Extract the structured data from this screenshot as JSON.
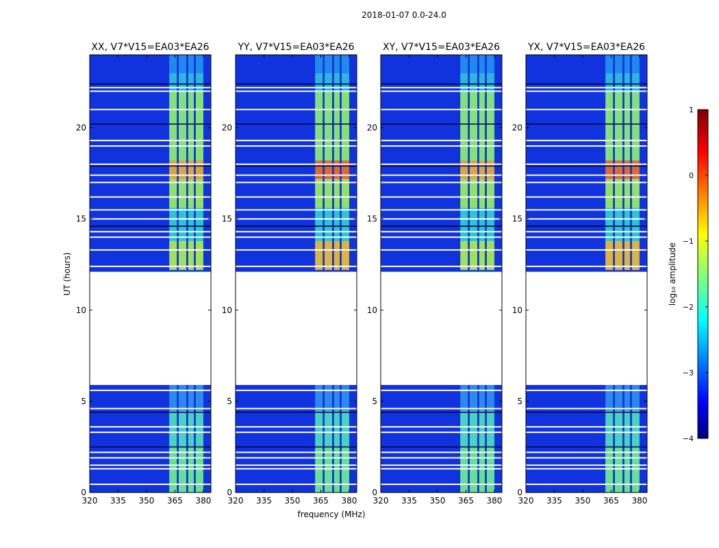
{
  "chart_data": {
    "type": "heatmap",
    "title": "2018-01-07 0.0-24.0",
    "xlabel": "frequency (MHz)",
    "ylabel": "UT (hours)",
    "xlim": [
      320,
      384
    ],
    "ylim": [
      0,
      24
    ],
    "x_ticks": [
      320,
      335,
      350,
      365,
      380
    ],
    "y_ticks": [
      0,
      5,
      10,
      15,
      20
    ],
    "panels": [
      {
        "title": "XX, V7*V15=EA03*EA26"
      },
      {
        "title": "YY, V7*V15=EA03*EA26"
      },
      {
        "title": "XY, V7*V15=EA03*EA26"
      },
      {
        "title": "YX, V7*V15=EA03*EA26"
      }
    ],
    "data_gaps_hours": [
      [
        5.9,
        12.1
      ]
    ],
    "colorbar": {
      "label": "log₁₀ amplitude",
      "range": [
        -4,
        1
      ],
      "ticks": [
        1,
        0,
        -1,
        -2,
        -3,
        -4
      ],
      "colormap": "jet"
    }
  },
  "colors": {
    "background": "#ffffff",
    "noise_floor": "#1133dd",
    "flag": "#ffffff"
  }
}
